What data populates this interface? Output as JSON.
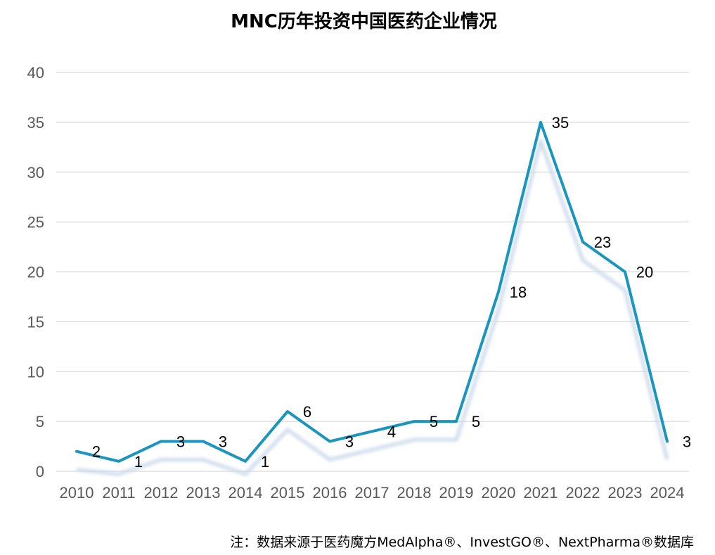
{
  "chart_data": {
    "type": "line",
    "title": "MNC历年投资中国医药企业情况",
    "xlabel": "",
    "ylabel": "",
    "categories": [
      "2010",
      "2011",
      "2012",
      "2013",
      "2014",
      "2015",
      "2016",
      "2017",
      "2018",
      "2019",
      "2020",
      "2021",
      "2022",
      "2023",
      "2024"
    ],
    "series": [
      {
        "values": [
          2,
          1,
          3,
          3,
          1,
          6,
          3,
          4,
          5,
          5,
          18,
          35,
          23,
          20,
          3
        ]
      }
    ],
    "ylim": [
      0,
      40
    ],
    "yticks": [
      0,
      5,
      10,
      15,
      20,
      25,
      30,
      35,
      40
    ],
    "grid": true,
    "legend": "none",
    "data_labels": true,
    "colors": {
      "line": "#1a95bd",
      "shadow": "#c9d7e8",
      "grid": "#d9d9d9",
      "tick": "#595959"
    }
  },
  "footer": {
    "source": "注：数据来源于医药魔方MedAlpha®、InvestGO®、NextPharma®数据库"
  }
}
